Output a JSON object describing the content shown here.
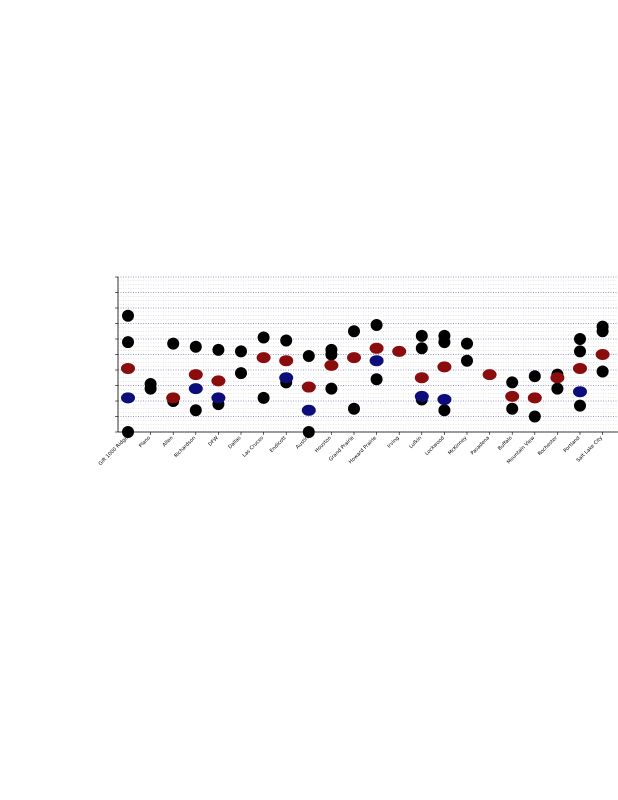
{
  "chart_data": {
    "type": "dot",
    "categories": [
      "Gift 1000 Ridge",
      "Plano",
      "Allen",
      "Richardson",
      "DFW",
      "Dallas",
      "Las Cruces",
      "Endicott",
      "Austin",
      "Houston",
      "Grand Prairie",
      "Howard Prairie",
      "Irving",
      "Lufkin",
      "Lockwood",
      "McKinney",
      "Pasadena",
      "Buffalo",
      "Mountain View",
      "Rochester",
      "Portland",
      "Salt Lake City"
    ],
    "series": [
      {
        "color": "#000000",
        "values": [
          7.5,
          3.1,
          5.7,
          5.5,
          5.3,
          5.2,
          6.1,
          5.9,
          4.9,
          5.3,
          6.5,
          6.9,
          null,
          6.2,
          6.2,
          5.7,
          null,
          3.2,
          3.6,
          3.7,
          6.0,
          6.8
        ]
      },
      {
        "color": "#000000",
        "values": [
          5.8,
          null,
          null,
          null,
          null,
          null,
          null,
          null,
          null,
          5.0,
          null,
          null,
          null,
          5.4,
          5.8,
          null,
          null,
          null,
          null,
          null,
          5.2,
          6.5
        ]
      },
      {
        "color": "#000000",
        "values": [
          0,
          2.8,
          2.0,
          1.4,
          1.8,
          3.8,
          2.2,
          3.2,
          0,
          2.8,
          1.5,
          3.4,
          null,
          2.1,
          1.4,
          4.6,
          null,
          1.5,
          1.0,
          2.8,
          1.7,
          3.9
        ]
      },
      {
        "color": "#8b0c0c",
        "values": [
          4.1,
          null,
          2.2,
          3.7,
          3.3,
          null,
          4.8,
          4.6,
          2.9,
          4.3,
          4.8,
          5.4,
          5.2,
          3.5,
          4.2,
          null,
          3.7,
          2.3,
          2.2,
          3.5,
          4.1,
          5.0
        ]
      },
      {
        "color": "#0c0c7a",
        "values": [
          2.2,
          null,
          null,
          2.8,
          2.2,
          null,
          null,
          3.5,
          1.4,
          null,
          null,
          4.6,
          null,
          2.3,
          2.1,
          null,
          null,
          null,
          null,
          null,
          2.6,
          null
        ]
      }
    ],
    "ylim": [
      0,
      10
    ],
    "yticks": [
      0,
      1,
      2,
      3,
      4,
      5,
      6,
      7,
      8,
      9,
      10
    ],
    "grid": true
  }
}
